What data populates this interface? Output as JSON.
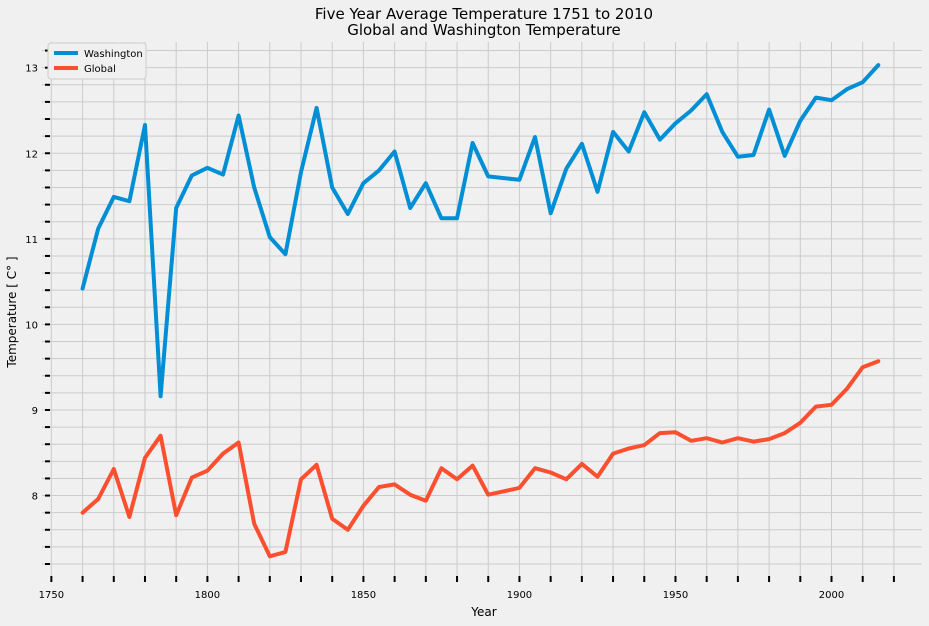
{
  "chart_data": {
    "type": "line",
    "title": [
      "Five Year Average Temperature 1751 to 2010",
      "Global and Washington Temperature"
    ],
    "xlabel": "Year",
    "ylabel": "Temperature [ C° ]",
    "xlim": [
      1747,
      2029
    ],
    "ylim": [
      7.06,
      13.3
    ],
    "xticks": [
      1750,
      1800,
      1850,
      1900,
      1950,
      2000
    ],
    "yticks": [
      8,
      9,
      10,
      11,
      12,
      13
    ],
    "grid": true,
    "legend_position": "top-left",
    "x": [
      1760,
      1765,
      1770,
      1775,
      1780,
      1785,
      1790,
      1795,
      1800,
      1805,
      1810,
      1815,
      1820,
      1825,
      1830,
      1835,
      1840,
      1845,
      1850,
      1855,
      1860,
      1865,
      1870,
      1875,
      1880,
      1885,
      1890,
      1895,
      1900,
      1905,
      1910,
      1915,
      1920,
      1925,
      1930,
      1935,
      1940,
      1945,
      1950,
      1955,
      1960,
      1965,
      1970,
      1975,
      1980,
      1985,
      1990,
      1995,
      2000,
      2005,
      2010,
      2015
    ],
    "series": [
      {
        "name": "Washington",
        "color": "#008fd5",
        "values": [
          10.42,
          11.12,
          11.49,
          11.44,
          12.33,
          9.16,
          11.36,
          11.74,
          11.83,
          11.75,
          12.44,
          11.6,
          11.02,
          10.82,
          11.78,
          12.53,
          11.6,
          11.29,
          11.65,
          11.8,
          12.02,
          11.36,
          11.65,
          11.24,
          11.24,
          12.12,
          11.73,
          11.71,
          11.69,
          12.19,
          11.3,
          11.82,
          12.11,
          11.55,
          12.25,
          12.02,
          12.48,
          12.16,
          12.35,
          12.5,
          12.69,
          12.25,
          11.96,
          11.98,
          12.51,
          11.97,
          12.38,
          12.65,
          12.62,
          12.75,
          12.83,
          13.03
        ]
      },
      {
        "name": "Global",
        "color": "#fc4f30",
        "values": [
          7.8,
          7.96,
          8.31,
          7.75,
          8.44,
          8.7,
          7.77,
          8.21,
          8.29,
          8.49,
          8.62,
          7.67,
          7.29,
          7.34,
          8.19,
          8.36,
          7.73,
          7.6,
          7.88,
          8.1,
          8.13,
          8.01,
          7.94,
          8.32,
          8.19,
          8.35,
          8.01,
          8.05,
          8.09,
          8.32,
          8.27,
          8.19,
          8.37,
          8.22,
          8.49,
          8.55,
          8.59,
          8.73,
          8.74,
          8.64,
          8.67,
          8.62,
          8.67,
          8.63,
          8.66,
          8.73,
          8.85,
          9.04,
          9.06,
          9.25,
          9.5,
          9.57
        ]
      }
    ]
  }
}
